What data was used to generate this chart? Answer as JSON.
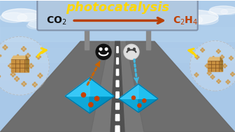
{
  "fig_width": 3.36,
  "fig_height": 1.89,
  "dpi": 100,
  "sky_color": "#a8c8e8",
  "sky_color2": "#c0d8f0",
  "road_color": "#787878",
  "road_shoulder": "#909090",
  "road_center_dark": "#606060",
  "sign_bg": "#b0c8e0",
  "sign_border": "#8090a8",
  "photocatalysis_color": "#FFD700",
  "co2_color": "#111111",
  "c2h4_color": "#c04000",
  "arrow_color": "#b84000",
  "dashed_orange": "#c86400",
  "dashed_blue": "#40b8e0",
  "octahedron_color": "#20c0f0",
  "octahedron_dark": "#0090c0",
  "octahedron_mid": "#10a8d8",
  "octahedron_dot": "#c84000",
  "mof_color": "#c89040",
  "road_line_color": "#ffffff",
  "post_color": "#888888",
  "sad_fill": "#111111",
  "happy_fill": "#dddddd",
  "happy_stroke": "#333333"
}
